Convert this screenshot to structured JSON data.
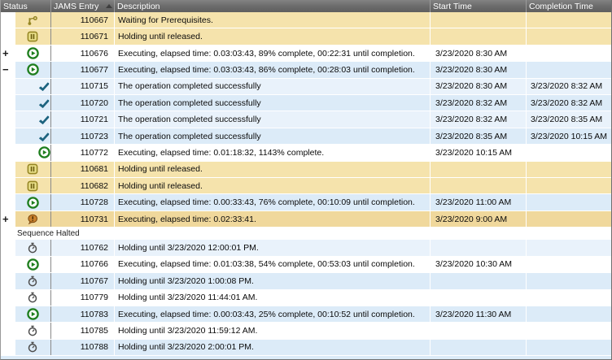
{
  "header": {
    "columns": [
      {
        "id": "status",
        "label": "Status"
      },
      {
        "id": "entry",
        "label": "JAMS Entry",
        "sorted": "asc"
      },
      {
        "id": "desc",
        "label": "Description"
      },
      {
        "id": "start",
        "label": "Start Time"
      },
      {
        "id": "comp",
        "label": "Completion Time"
      }
    ]
  },
  "expander_symbols": {
    "expand": "+",
    "collapse": "−"
  },
  "group_row": {
    "label": "Sequence Halted"
  },
  "colors": {
    "yellow": "#f5e3ac",
    "halted_yellow": "#f0d89c",
    "blue": "#dcebf8",
    "blue_alt": "#e9f2fb",
    "white": "#ffffff",
    "header_text": "#ffffff",
    "grid_line": "#8a8a8a",
    "play_green": "#1e7e1e",
    "check_teal": "#1c637f",
    "olive": "#958523",
    "olive_fill": "#eae08a",
    "olive_dark": "#6d5f10",
    "balloon_orange": "#c8802c",
    "balloon_outline": "#7d4a10",
    "stopwatch_gray": "#4d4d4d"
  },
  "icons": {
    "prerequisites": "branch-prerequisite-icon",
    "hold": "pause-icon",
    "play": "play-icon",
    "check": "check-icon",
    "halted": "balloon-exclamation-icon",
    "timer": "stopwatch-icon"
  },
  "rows": [
    {
      "entry": "110667",
      "desc": "Waiting for Prerequisites.",
      "start": "",
      "comp": "",
      "icon": "prerequisites",
      "bg": "yellow",
      "indent": 0,
      "expander": ""
    },
    {
      "entry": "110671",
      "desc": "Holding until released.",
      "start": "",
      "comp": "",
      "icon": "hold",
      "bg": "yellow",
      "indent": 0,
      "expander": ""
    },
    {
      "entry": "110676",
      "desc": "Executing, elapsed time: 0.03:03:43, 89% complete, 00:22:31 until completion.",
      "start": "3/23/2020 8:30 AM",
      "comp": "",
      "icon": "play",
      "bg": "white",
      "indent": 0,
      "expander": "expand"
    },
    {
      "entry": "110677",
      "desc": "Executing, elapsed time: 0.03:03:43, 86% complete, 00:28:03 until completion.",
      "start": "3/23/2020 8:30 AM",
      "comp": "",
      "icon": "play",
      "bg": "blue",
      "indent": 0,
      "expander": "collapse"
    },
    {
      "entry": "110715",
      "desc": "The operation completed successfully",
      "start": "3/23/2020 8:30 AM",
      "comp": "3/23/2020 8:32 AM",
      "icon": "check",
      "bg": "blue_alt",
      "indent": 1,
      "expander": ""
    },
    {
      "entry": "110720",
      "desc": "The operation completed successfully",
      "start": "3/23/2020 8:32 AM",
      "comp": "3/23/2020 8:32 AM",
      "icon": "check",
      "bg": "blue",
      "indent": 1,
      "expander": ""
    },
    {
      "entry": "110721",
      "desc": "The operation completed successfully",
      "start": "3/23/2020 8:32 AM",
      "comp": "3/23/2020 8:35 AM",
      "icon": "check",
      "bg": "blue_alt",
      "indent": 1,
      "expander": ""
    },
    {
      "entry": "110723",
      "desc": "The operation completed successfully",
      "start": "3/23/2020 8:35 AM",
      "comp": "3/23/2020 10:15 AM",
      "icon": "check",
      "bg": "blue",
      "indent": 1,
      "expander": ""
    },
    {
      "entry": "110772",
      "desc": "Executing, elapsed time: 0.01:18:32, 1143% complete.",
      "start": "3/23/2020 10:15 AM",
      "comp": "",
      "icon": "play",
      "bg": "white",
      "indent": 1,
      "expander": ""
    },
    {
      "entry": "110681",
      "desc": "Holding until released.",
      "start": "",
      "comp": "",
      "icon": "hold",
      "bg": "yellow",
      "indent": 0,
      "expander": ""
    },
    {
      "entry": "110682",
      "desc": "Holding until released.",
      "start": "",
      "comp": "",
      "icon": "hold",
      "bg": "yellow",
      "indent": 0,
      "expander": ""
    },
    {
      "entry": "110728",
      "desc": "Executing, elapsed time: 0.00:33:43, 76% complete, 00:10:09 until completion.",
      "start": "3/23/2020 11:00 AM",
      "comp": "",
      "icon": "play",
      "bg": "blue",
      "indent": 0,
      "expander": ""
    },
    {
      "entry": "110731",
      "desc": "Executing, elapsed time: 0.02:33:41.",
      "start": "3/23/2020 9:00 AM",
      "comp": "",
      "icon": "halted",
      "bg": "halted_yellow",
      "indent": 0,
      "expander": "expand"
    },
    {
      "group": true
    },
    {
      "entry": "110762",
      "desc": "Holding until 3/23/2020 12:00:01 PM.",
      "start": "",
      "comp": "",
      "icon": "timer",
      "bg": "blue_alt",
      "indent": 0,
      "expander": ""
    },
    {
      "entry": "110766",
      "desc": "Executing, elapsed time: 0.01:03:38, 54% complete, 00:53:03 until completion.",
      "start": "3/23/2020 10:30 AM",
      "comp": "",
      "icon": "play",
      "bg": "white",
      "indent": 0,
      "expander": ""
    },
    {
      "entry": "110767",
      "desc": "Holding until 3/23/2020 1:00:08 PM.",
      "start": "",
      "comp": "",
      "icon": "timer",
      "bg": "blue",
      "indent": 0,
      "expander": ""
    },
    {
      "entry": "110779",
      "desc": "Holding until 3/23/2020 11:44:01 AM.",
      "start": "",
      "comp": "",
      "icon": "timer",
      "bg": "white",
      "indent": 0,
      "expander": ""
    },
    {
      "entry": "110783",
      "desc": "Executing, elapsed time: 0.00:03:43, 25% complete, 00:10:52 until completion.",
      "start": "3/23/2020 11:30 AM",
      "comp": "",
      "icon": "play",
      "bg": "blue",
      "indent": 0,
      "expander": ""
    },
    {
      "entry": "110785",
      "desc": "Holding until 3/23/2020 11:59:12 AM.",
      "start": "",
      "comp": "",
      "icon": "timer",
      "bg": "white",
      "indent": 0,
      "expander": ""
    },
    {
      "entry": "110788",
      "desc": "Holding until 3/23/2020 2:00:01 PM.",
      "start": "",
      "comp": "",
      "icon": "timer",
      "bg": "blue",
      "indent": 0,
      "expander": ""
    }
  ],
  "partial_row_bg": "blue"
}
